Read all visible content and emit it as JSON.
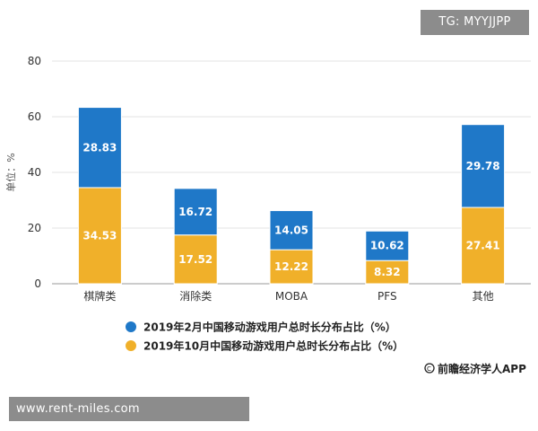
{
  "badge": {
    "text": "TG: MYYJJPP"
  },
  "footer": {
    "text": "www.rent-miles.com"
  },
  "source": {
    "text": "前瞻经济学人APP",
    "icon": "copyright-icon"
  },
  "colors": {
    "series_feb": "#1f78c8",
    "series_oct": "#f0b02a",
    "grid": "#e3e3e3",
    "axis": "#999999"
  },
  "chart_data": {
    "type": "bar",
    "stacked": true,
    "categories": [
      "棋牌类",
      "消除类",
      "MOBA",
      "PFS",
      "其他"
    ],
    "series": [
      {
        "name": "2019年10月中国移动游戏用户总时长分布占比（%）",
        "values": [
          34.53,
          17.52,
          12.22,
          8.32,
          27.41
        ],
        "color": "#f0b02a"
      },
      {
        "name": "2019年2月中国移动游戏用户总时长分布占比（%）",
        "values": [
          28.83,
          16.72,
          14.05,
          10.62,
          29.78
        ],
        "color": "#1f78c8"
      }
    ],
    "legend": [
      {
        "name": "2019年2月中国移动游戏用户总时长分布占比（%）",
        "color": "#1f78c8"
      },
      {
        "name": "2019年10月中国移动游戏用户总时长分布占比（%）",
        "color": "#f0b02a"
      }
    ],
    "legend_position": "bottom",
    "ylabel": "单位：%",
    "yticks": [
      0,
      20,
      40,
      60,
      80
    ],
    "ylim": [
      0,
      80
    ],
    "grid": true
  }
}
